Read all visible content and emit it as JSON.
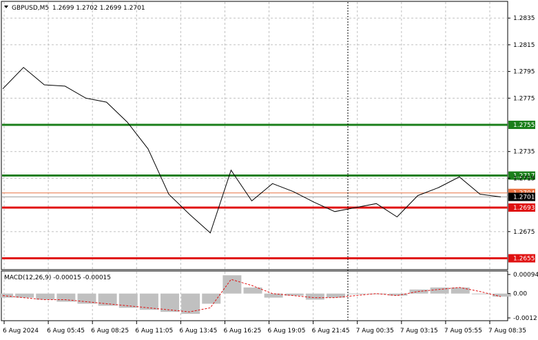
{
  "header": {
    "symbol": "GBPUSD,M5",
    "ohlc": "1.2699 1.2702 1.2699 1.2701"
  },
  "macd": {
    "label": "MACD(12,26,9) -0.00015 -0.00015",
    "ticks": [
      "0.00094",
      "0.00",
      "-0.0012"
    ]
  },
  "chart_data": [
    {
      "type": "line",
      "title": "GBPUSD,M5",
      "ylim": [
        1.2647,
        1.2847
      ],
      "y_ticks": [
        "1.2835",
        "1.2815",
        "1.2795",
        "1.2775",
        "1.2735",
        "1.2715",
        "1.2675"
      ],
      "x_ticks": [
        "6 Aug 2024",
        "6 Aug 05:45",
        "6 Aug 08:25",
        "6 Aug 11:05",
        "6 Aug 13:45",
        "6 Aug 16:25",
        "6 Aug 19:05",
        "6 Aug 21:45",
        "7 Aug 00:35",
        "7 Aug 03:15",
        "7 Aug 05:55",
        "7 Aug 08:35"
      ],
      "grid": true,
      "series": [
        {
          "x": [
            "6 Aug 2024",
            "6 Aug 03:45",
            "6 Aug 04:45",
            "6 Aug 05:45",
            "6 Aug 07:05",
            "6 Aug 08:25",
            "6 Aug 09:45",
            "6 Aug 11:05",
            "6 Aug 12:25",
            "6 Aug 13:45",
            "6 Aug 14:45",
            "6 Aug 16:25",
            "6 Aug 17:45",
            "6 Aug 19:05",
            "6 Aug 20:25",
            "6 Aug 21:45",
            "6 Aug 23:05",
            "7 Aug 00:35",
            "7 Aug 01:55",
            "7 Aug 03:15",
            "7 Aug 04:35",
            "7 Aug 05:55",
            "7 Aug 06:45",
            "7 Aug 07:15",
            "7 Aug 08:35"
          ],
          "values": [
            1.2782,
            1.2798,
            1.2785,
            1.2784,
            1.2775,
            1.2772,
            1.2757,
            1.2737,
            1.2703,
            1.2688,
            1.2674,
            1.2721,
            1.2698,
            1.2711,
            1.2705,
            1.2697,
            1.269,
            1.2693,
            1.2696,
            1.2686,
            1.2702,
            1.2708,
            1.2716,
            1.2703,
            1.2701
          ]
        }
      ],
      "levels": [
        {
          "label": "1.2755",
          "value": 1.2755,
          "color": "#1a7f1a"
        },
        {
          "label": "1.2717",
          "value": 1.2717,
          "color": "#1a7f1a"
        },
        {
          "label": "1.2693",
          "value": 1.2693,
          "color": "#e01010"
        },
        {
          "label": "1.2655",
          "value": 1.2655,
          "color": "#e01010"
        }
      ],
      "current_price": {
        "label": "1.2701",
        "value": 1.2701
      },
      "ask_line": {
        "label": "1.2704",
        "value": 1.2704
      }
    },
    {
      "type": "bar",
      "title": "MACD(12,26,9)",
      "ylim": [
        -0.0012,
        0.00094
      ],
      "values": [
        -0.0002,
        -0.0002,
        -0.0003,
        -0.0004,
        -0.0005,
        -0.0006,
        -0.0007,
        -0.0008,
        -0.0009,
        -0.001,
        -0.0005,
        0.0009,
        0.0003,
        -0.0002,
        -0.0001,
        -0.0003,
        -0.0002,
        0.0,
        0.0,
        -0.0001,
        0.0002,
        0.0003,
        0.0003,
        0.0,
        -0.00015
      ],
      "signal": [
        -0.0001,
        -0.0002,
        -0.0003,
        -0.0003,
        -0.0004,
        -0.0005,
        -0.0006,
        -0.0007,
        -0.0008,
        -0.0009,
        -0.0007,
        0.0007,
        0.0004,
        0.0,
        -0.0001,
        -0.0002,
        -0.0002,
        -0.0001,
        0.0,
        -0.0001,
        0.0001,
        0.0002,
        0.0003,
        0.0001,
        -0.00015
      ]
    }
  ]
}
